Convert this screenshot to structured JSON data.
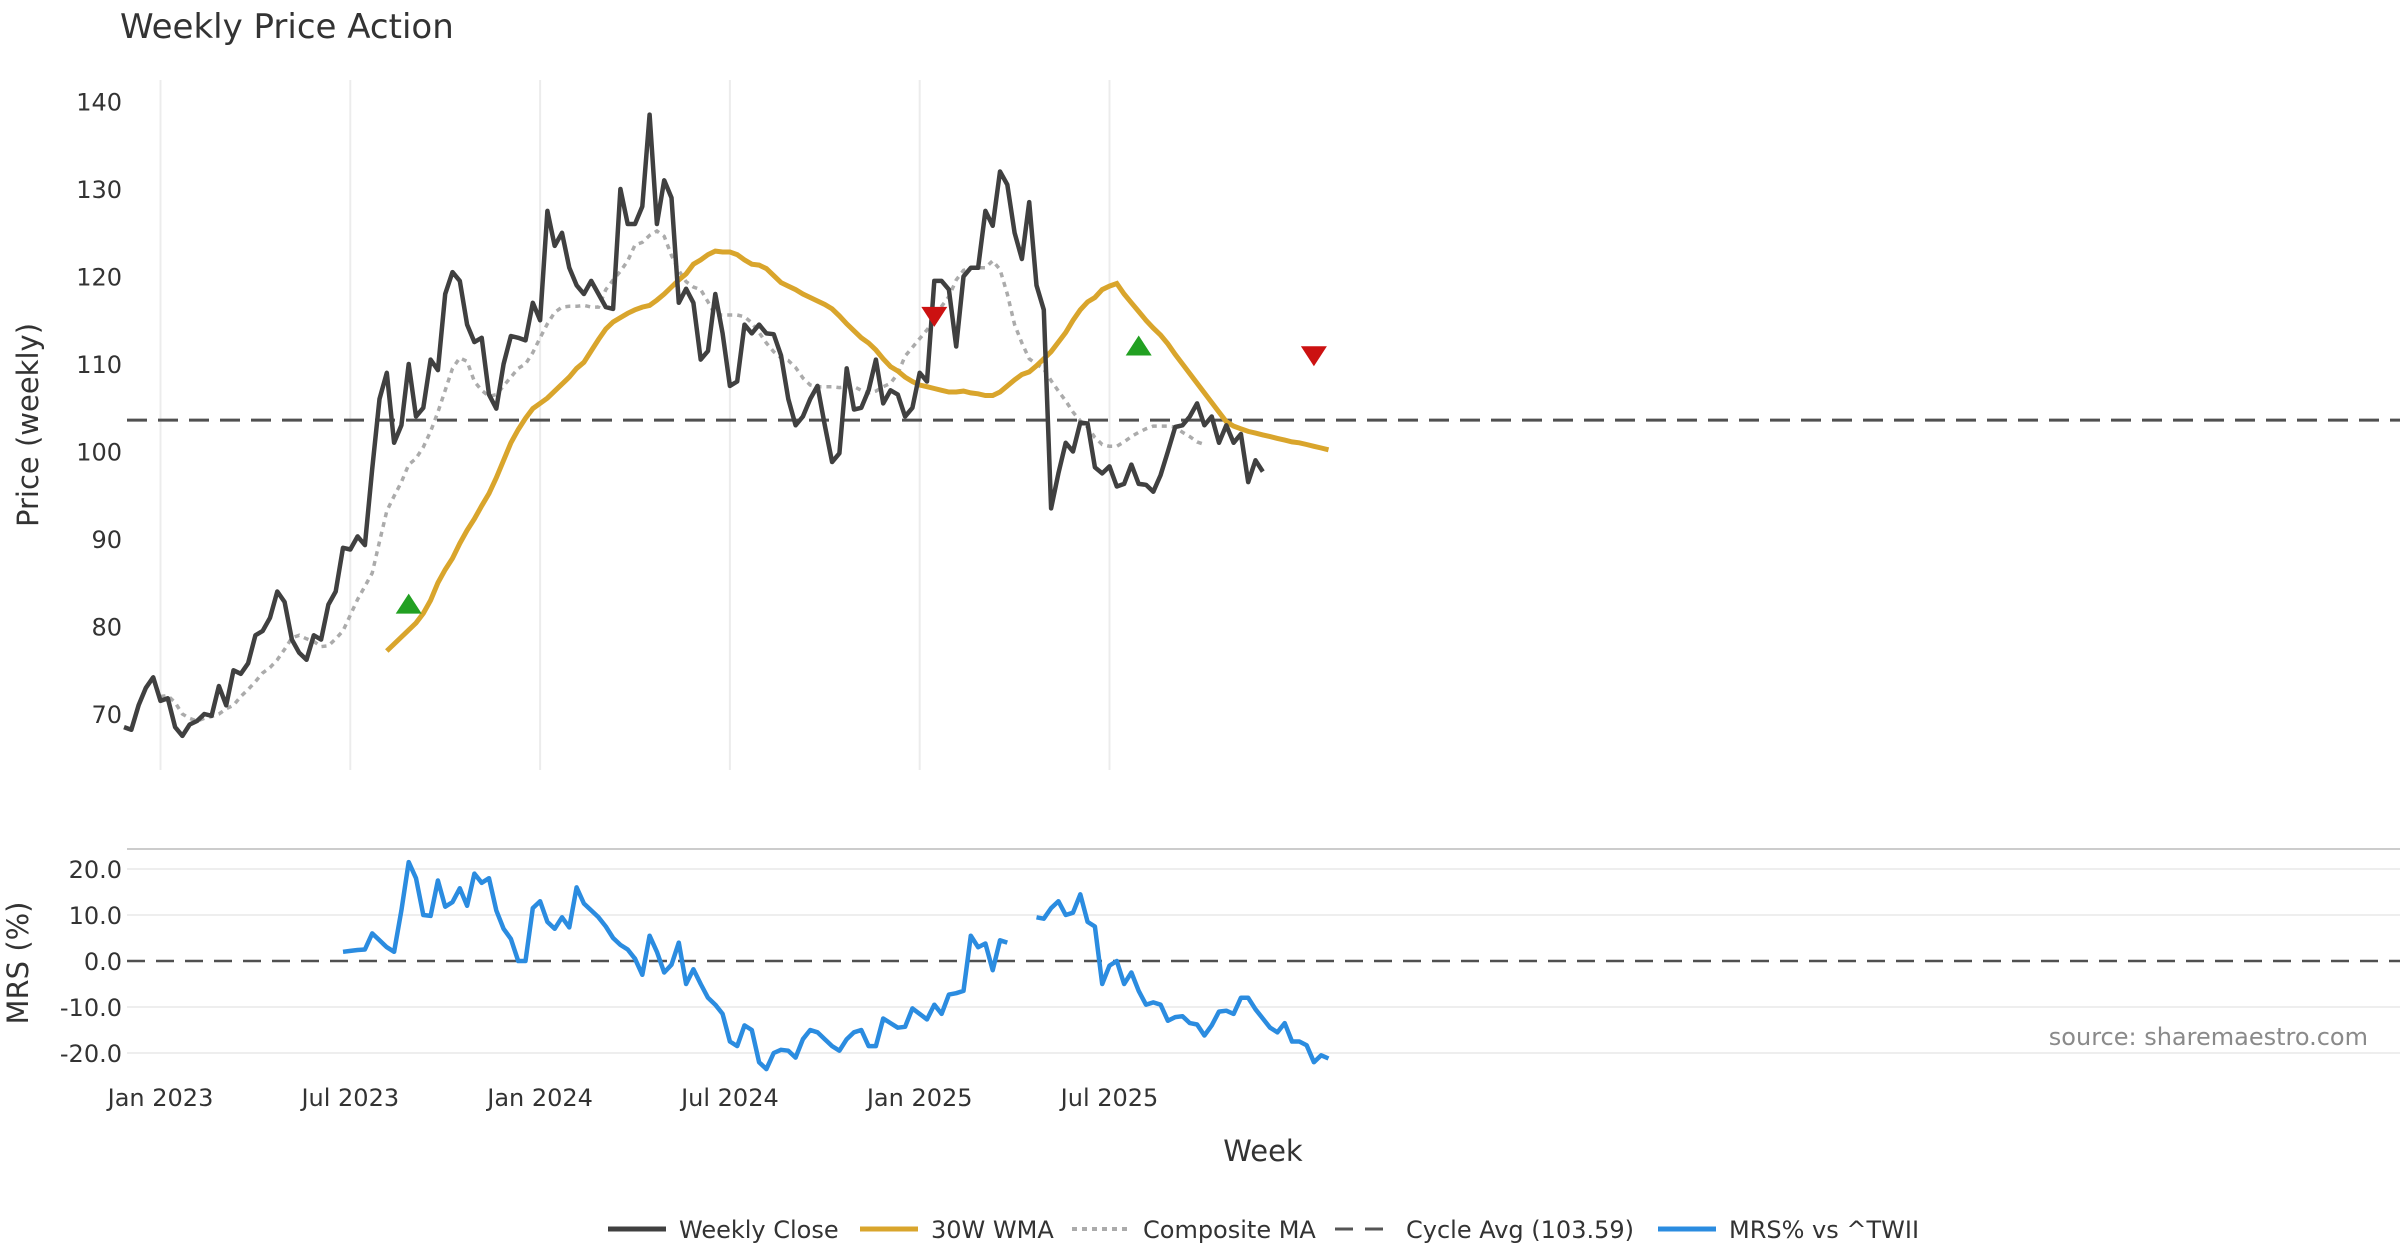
{
  "chart_data": [
    {
      "type": "line",
      "title": "Weekly Price Action",
      "ylabel": "Price (weekly)",
      "ylim": [
        63,
        142
      ],
      "yticks": [
        70,
        80,
        90,
        100,
        110,
        120,
        130,
        140
      ],
      "x_start": "2022-11-28",
      "cycle_avg": 103.59,
      "series": [
        {
          "name": "Weekly Close",
          "color": "#404040",
          "start_index": 0,
          "values": [
            68.5,
            68.2,
            71.0,
            73.0,
            74.2,
            71.5,
            71.8,
            68.5,
            67.5,
            68.8,
            69.2,
            70.0,
            69.8,
            73.2,
            71.0,
            75.0,
            74.6,
            75.8,
            79.0,
            79.5,
            81.0,
            84.0,
            82.8,
            78.5,
            77.0,
            76.2,
            79.0,
            78.5,
            82.5,
            84.0,
            89.0,
            88.8,
            90.3,
            89.3,
            98.0,
            106.0,
            109.0,
            101.0,
            103.0,
            110.0,
            104.0,
            105.0,
            110.5,
            109.3,
            118.0,
            120.5,
            119.5,
            114.5,
            112.5,
            113.0,
            106.5,
            104.9,
            110.0,
            113.2,
            113.0,
            112.7,
            117.0,
            115.0,
            127.5,
            123.5,
            125.0,
            121.0,
            119.0,
            118.0,
            119.5,
            118.0,
            116.5,
            116.3,
            130.0,
            126.0,
            126.0,
            128.0,
            138.5,
            126.0,
            131.0,
            129.0,
            117.0,
            118.6,
            117.0,
            110.5,
            111.5,
            118.0,
            113.5,
            107.5,
            108.0,
            114.5,
            113.5,
            114.5,
            113.5,
            113.4,
            111.0,
            106.0,
            103.0,
            104.0,
            106.0,
            107.5,
            103.0,
            98.8,
            99.8,
            109.5,
            104.8,
            105.0,
            107.0,
            110.5,
            105.5,
            107.0,
            106.5,
            104.0,
            105.0,
            109.0,
            108.0,
            119.5,
            119.5,
            118.5,
            112.0,
            120.0,
            121.0,
            121.0,
            127.5,
            125.8,
            132.0,
            130.5,
            125.0,
            122.0,
            128.5,
            119.0,
            116.2,
            93.5,
            97.5,
            101.0,
            100.0,
            103.3,
            103.2,
            98.2,
            97.5,
            98.3,
            96.0,
            96.3,
            98.5,
            96.3,
            96.2,
            95.4,
            97.3,
            100.0,
            102.8,
            103.0,
            104.0,
            105.5,
            103.0,
            104.0,
            101.0,
            103.0,
            101.0,
            102.0,
            96.5,
            99.0,
            97.7
          ]
        },
        {
          "name": "30W WMA",
          "color": "#d9a52c",
          "start_index": 36,
          "values": [
            77.2,
            78.0,
            78.8,
            79.6,
            80.4,
            81.5,
            83.0,
            85.0,
            86.5,
            87.8,
            89.5,
            91.0,
            92.3,
            93.8,
            95.2,
            97.0,
            99.0,
            101.0,
            102.5,
            103.8,
            104.9,
            105.5,
            106.1,
            106.9,
            107.7,
            108.5,
            109.5,
            110.2,
            111.5,
            112.8,
            114.0,
            114.8,
            115.3,
            115.8,
            116.2,
            116.5,
            116.7,
            117.3,
            118.0,
            118.8,
            119.6,
            120.3,
            121.4,
            121.9,
            122.5,
            122.9,
            122.8,
            122.8,
            122.5,
            121.9,
            121.4,
            121.3,
            120.9,
            120.1,
            119.3,
            118.9,
            118.5,
            118.0,
            117.6,
            117.2,
            116.8,
            116.3,
            115.5,
            114.6,
            113.8,
            113.0,
            112.4,
            111.6,
            110.6,
            109.7,
            109.2,
            108.5,
            108.0,
            107.6,
            107.4,
            107.2,
            107.0,
            106.8,
            106.8,
            106.9,
            106.7,
            106.6,
            106.4,
            106.4,
            106.8,
            107.5,
            108.2,
            108.8,
            109.1,
            109.8,
            110.6,
            111.4,
            112.5,
            113.6,
            115.0,
            116.2,
            117.1,
            117.6,
            118.5,
            118.9,
            119.2,
            118.0,
            117.0,
            116.0,
            115.0,
            114.1,
            113.3,
            112.3,
            111.1,
            110.0,
            108.9,
            107.8,
            106.7,
            105.6,
            104.5,
            103.4,
            102.9,
            102.6,
            102.3,
            102.1,
            101.9,
            101.7,
            101.5,
            101.3,
            101.1,
            101.0,
            100.8,
            100.6,
            100.4,
            100.2
          ]
        },
        {
          "name": "Composite MA",
          "color": "#ababab",
          "start_index": 5,
          "values": [
            72.0,
            72.1,
            71.3,
            70.0,
            69.5,
            69.2,
            69.5,
            69.7,
            70.0,
            70.6,
            71.0,
            72.0,
            72.8,
            73.7,
            74.7,
            75.3,
            76.2,
            77.4,
            78.7,
            79.0,
            78.6,
            78.3,
            77.7,
            77.8,
            78.6,
            79.5,
            81.3,
            83.1,
            84.6,
            86.1,
            89.7,
            93.2,
            94.9,
            96.5,
            98.5,
            99.2,
            100.5,
            102.3,
            104.5,
            107.0,
            109.5,
            110.7,
            110.3,
            108.0,
            107.0,
            106.3,
            106.5,
            107.5,
            108.5,
            109.5,
            110.0,
            111.3,
            113.0,
            114.6,
            115.9,
            116.5,
            116.6,
            116.6,
            116.7,
            116.5,
            116.5,
            118.5,
            119.6,
            120.6,
            121.8,
            123.6,
            123.9,
            124.7,
            125.2,
            124.6,
            122.4,
            120.7,
            119.4,
            118.8,
            118.5,
            117.1,
            115.6,
            115.6,
            115.6,
            115.6,
            115.4,
            114.7,
            113.6,
            112.4,
            111.4,
            110.7,
            110.4,
            109.6,
            108.4,
            107.6,
            107.4,
            107.4,
            107.4,
            107.3,
            107.4,
            107.4,
            107.0,
            106.7,
            106.9,
            107.4,
            107.8,
            108.9,
            110.9,
            111.9,
            112.9,
            113.9,
            115.0,
            116.6,
            117.7,
            119.6,
            120.7,
            121.0,
            121.0,
            121.0,
            121.8,
            120.8,
            118.0,
            114.5,
            112.4,
            110.6,
            110.0,
            109.4,
            108.1,
            106.9,
            105.8,
            104.5,
            103.5,
            102.8,
            101.6,
            100.8,
            100.6,
            100.6,
            101.1,
            101.7,
            102.2,
            102.6,
            102.9,
            102.9,
            102.9,
            102.8,
            102.2,
            101.7,
            101.1,
            100.8
          ]
        }
      ],
      "signals": [
        {
          "type": "buy",
          "index": 39,
          "value": 82.5,
          "color": "#22a022"
        },
        {
          "type": "sell",
          "index": 111,
          "value": 115.5,
          "color": "#cc1111"
        },
        {
          "type": "buy",
          "index": 139,
          "value": 112.0,
          "color": "#22a022"
        },
        {
          "type": "sell",
          "index": 163,
          "value": 111.0,
          "color": "#cc1111"
        }
      ]
    },
    {
      "type": "line",
      "ylabel": "MRS (%)",
      "ylim": [
        -22,
        22
      ],
      "yticks": [
        20.0,
        10.0,
        0.0,
        -10.0,
        -20.0
      ],
      "xlabel": "Week",
      "xticks": [
        "Jan 2023",
        "Jul 2023",
        "Jan 2024",
        "Jul 2024",
        "Jan 2025",
        "Jul 2025"
      ],
      "zero_line": 0,
      "series": [
        {
          "name": "MRS% vs ^TWII",
          "color": "#2b8ce0",
          "segments": [
            {
              "start_index": 30,
              "values": [
                2.0,
                2.2,
                2.4,
                2.5,
                6.0,
                4.5,
                3.0,
                2.0,
                11.0,
                21.5,
                18.0,
                10.0,
                9.8,
                17.5,
                11.8,
                12.8,
                15.8,
                12.0,
                19.0,
                17.0,
                18.0,
                11.0,
                7.0,
                4.8,
                0.0,
                0.0,
                11.5,
                13.0,
                8.5,
                7.0,
                9.5,
                7.3,
                16.0,
                12.5,
                11.0,
                9.5,
                7.5,
                5.0,
                3.5,
                2.5,
                0.5,
                -3.0,
                5.5,
                2.0,
                -2.5,
                -0.8,
                4.0,
                -5.0,
                -1.8,
                -5.0,
                -8.0,
                -9.5,
                -11.5,
                -17.5,
                -18.5,
                -14.0,
                -15.0,
                -22.0,
                -23.5,
                -20.0,
                -19.3,
                -19.5,
                -21.0,
                -17.0,
                -15.0,
                -15.5,
                -17.0,
                -18.5,
                -19.5,
                -17.0,
                -15.5,
                -15.0,
                -18.5,
                -18.5,
                -12.5,
                -13.5,
                -14.5,
                -14.3,
                -10.3,
                -11.5,
                -12.7,
                -9.5,
                -11.5,
                -7.3,
                -7.0,
                -6.5,
                5.5,
                3.0,
                3.8,
                -2.0,
                4.5,
                4.0
              ]
            },
            {
              "start_index": 125,
              "values": [
                9.5,
                9.2,
                11.5,
                13.0,
                10.0,
                10.5,
                14.5,
                8.5,
                7.5,
                -5.0,
                -1.0,
                0.0,
                -5.0,
                -2.5,
                -6.5,
                -9.5,
                -9.0,
                -9.5,
                -13.0,
                -12.2,
                -12.0,
                -13.5,
                -13.8,
                -16.2,
                -14.0,
                -11.0,
                -10.8,
                -11.5,
                -8.0,
                -8.0,
                -10.5,
                -12.5,
                -14.5,
                -15.5,
                -13.5,
                -17.5,
                -17.5,
                -18.3,
                -22.0,
                -20.5,
                -21.2
              ]
            }
          ]
        }
      ],
      "annotation": "source: sharemaestro.com"
    }
  ],
  "legend": [
    {
      "label": "Weekly Close",
      "style": "solid",
      "color": "#404040"
    },
    {
      "label": "30W WMA",
      "style": "solid",
      "color": "#d9a52c"
    },
    {
      "label": "Composite MA",
      "style": "dotted",
      "color": "#ababab"
    },
    {
      "label": "Cycle Avg (103.59)",
      "style": "dashed",
      "color": "#555555"
    },
    {
      "label": "MRS% vs ^TWII",
      "style": "solid",
      "color": "#2b8ce0"
    }
  ]
}
